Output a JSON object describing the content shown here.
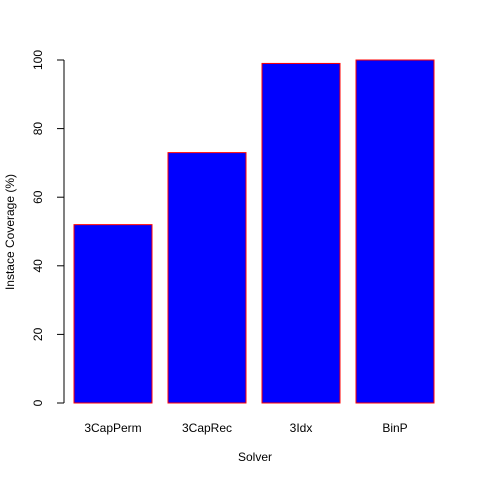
{
  "chart_data": {
    "type": "bar",
    "title": "",
    "xlabel": "Solver",
    "ylabel": "Instace Coverage (%)",
    "categories": [
      "3CapPerm",
      "3CapRec",
      "3Idx",
      "BinP"
    ],
    "values": [
      52,
      73,
      99,
      100
    ],
    "ylim": [
      0,
      100
    ],
    "yticks": [
      0,
      20,
      40,
      60,
      80,
      100
    ],
    "grid": false,
    "legend": "none",
    "colors": {
      "bar_fill": "#0000ff",
      "bar_border": "#ff0000",
      "axis": "#000000"
    }
  }
}
